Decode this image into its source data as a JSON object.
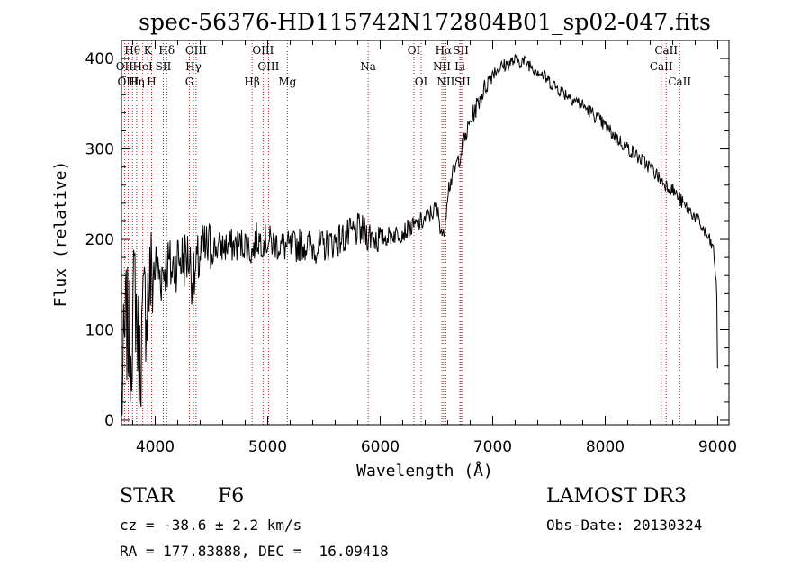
{
  "chart_data": {
    "type": "line",
    "title": "spec-56376-HD115742N172804B01_sp02-047.fits",
    "xlabel": "Wavelength (Å)",
    "ylabel": "Flux (relative)",
    "xlim": [
      3700,
      9100
    ],
    "ylim": [
      -5,
      420
    ],
    "x_ticks": [
      4000,
      5000,
      6000,
      7000,
      8000,
      9000
    ],
    "y_ticks": [
      0,
      100,
      200,
      300,
      400
    ],
    "series": [
      {
        "name": "flux",
        "x": [
          3700,
          3740,
          3780,
          3820,
          3860,
          3900,
          3950,
          4000,
          4050,
          4100,
          4150,
          4200,
          4250,
          4300,
          4340,
          4400,
          4500,
          4600,
          4700,
          4800,
          4861,
          4900,
          5000,
          5100,
          5200,
          5300,
          5400,
          5500,
          5600,
          5700,
          5800,
          5900,
          6000,
          6100,
          6200,
          6300,
          6400,
          6500,
          6563,
          6600,
          6700,
          6800,
          6900,
          7000,
          7100,
          7200,
          7300,
          7400,
          7500,
          7600,
          7700,
          7800,
          7900,
          8000,
          8100,
          8200,
          8300,
          8400,
          8500,
          8600,
          8700,
          8800,
          8900,
          8960,
          8990,
          9000
        ],
        "y": [
          20,
          110,
          80,
          150,
          60,
          120,
          150,
          170,
          160,
          175,
          165,
          180,
          178,
          182,
          150,
          184,
          190,
          192,
          193,
          196,
          185,
          200,
          198,
          194,
          190,
          195,
          192,
          192,
          198,
          203,
          210,
          205,
          200,
          205,
          208,
          214,
          222,
          235,
          200,
          255,
          290,
          330,
          360,
          385,
          392,
          398,
          396,
          387,
          375,
          365,
          357,
          348,
          338,
          325,
          312,
          301,
          290,
          280,
          265,
          255,
          238,
          225,
          205,
          190,
          150,
          40
        ]
      }
    ],
    "spectral_lines": [
      {
        "name": "Hθ",
        "wavelength": 3798,
        "row": 0
      },
      {
        "name": "K",
        "wavelength": 3934,
        "row": 0
      },
      {
        "name": "Hδ",
        "wavelength": 4102,
        "row": 0
      },
      {
        "name": "OIII",
        "wavelength": 4363,
        "row": 0
      },
      {
        "name": "OIII",
        "wavelength": 4959,
        "row": 0
      },
      {
        "name": "OI",
        "wavelength": 6300,
        "row": 0
      },
      {
        "name": "Hα",
        "wavelength": 6563,
        "row": 0
      },
      {
        "name": "SII",
        "wavelength": 6717,
        "row": 0
      },
      {
        "name": "CaII",
        "wavelength": 8542,
        "row": 0
      },
      {
        "name": "OII",
        "wavelength": 3727,
        "row": 1
      },
      {
        "name": "HeI",
        "wavelength": 3889,
        "row": 1
      },
      {
        "name": "SII",
        "wavelength": 4072,
        "row": 1
      },
      {
        "name": "Hγ",
        "wavelength": 4340,
        "row": 1
      },
      {
        "name": "OIII",
        "wavelength": 5007,
        "row": 1
      },
      {
        "name": "Na",
        "wavelength": 5893,
        "row": 1
      },
      {
        "name": "NII",
        "wavelength": 6548,
        "row": 1
      },
      {
        "name": "Li",
        "wavelength": 6708,
        "row": 1
      },
      {
        "name": "CaII",
        "wavelength": 8498,
        "row": 1
      },
      {
        "name": "OIII",
        "wavelength": 3760,
        "row": 2
      },
      {
        "name": "Hη",
        "wavelength": 3835,
        "row": 2
      },
      {
        "name": "H",
        "wavelength": 3968,
        "row": 2
      },
      {
        "name": "G",
        "wavelength": 4304,
        "row": 2
      },
      {
        "name": "Hβ",
        "wavelength": 4861,
        "row": 2
      },
      {
        "name": "Mg",
        "wavelength": 5175,
        "row": 2
      },
      {
        "name": "OI",
        "wavelength": 6364,
        "row": 2
      },
      {
        "name": "NII",
        "wavelength": 6583,
        "row": 2
      },
      {
        "name": "SII",
        "wavelength": 6731,
        "row": 2
      },
      {
        "name": "CaII",
        "wavelength": 8662,
        "row": 2
      }
    ],
    "line_color": "#b22222"
  },
  "info": {
    "class": "STAR",
    "subclass": "F6",
    "survey": "LAMOST DR3",
    "redshift": "cz = -38.6 ± 2.2 km/s",
    "obs_date": "Obs-Date: 20130324",
    "coords": "RA = 177.83888, DEC =  16.09418"
  }
}
